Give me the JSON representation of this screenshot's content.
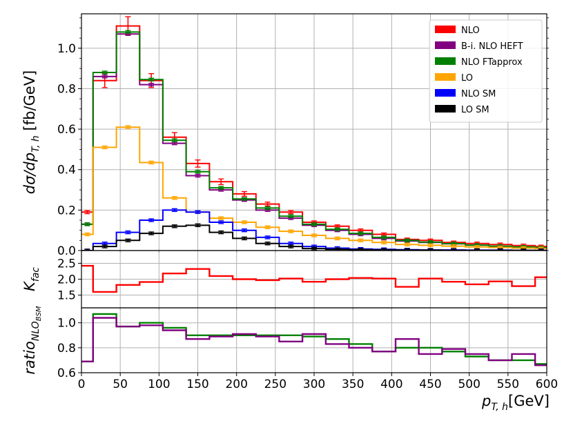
{
  "chart_data": [
    {
      "panel": "main",
      "type": "line",
      "step": true,
      "ylabel": "dσ/dp",
      "ylabel_sub": "T, h",
      "ylabel_unit": " [fb/GeV]",
      "xlim": [
        0,
        600
      ],
      "ylim": [
        0,
        1.17
      ],
      "yticks": [
        "0.0",
        "0.2",
        "0.4",
        "0.6",
        "0.8",
        "1.0"
      ],
      "yticks_values": [
        0,
        0.2,
        0.4,
        0.6,
        0.8,
        1.0
      ],
      "grid": true,
      "legend_position": "top-right",
      "x_edges": [
        0,
        15,
        45,
        75,
        105,
        135,
        165,
        195,
        225,
        255,
        285,
        315,
        345,
        375,
        405,
        435,
        465,
        495,
        525,
        555,
        585,
        600
      ],
      "series": [
        {
          "name": "NLO",
          "color": "#ff0000",
          "values": [
            0.19,
            0.84,
            1.11,
            0.84,
            0.56,
            0.43,
            0.34,
            0.28,
            0.23,
            0.19,
            0.14,
            0.12,
            0.1,
            0.08,
            0.055,
            0.05,
            0.04,
            0.035,
            0.03,
            0.025,
            0.02
          ]
        },
        {
          "name": "B-i. NLO HEFT",
          "color": "#800080",
          "values": [
            0.13,
            0.86,
            1.07,
            0.82,
            0.53,
            0.37,
            0.3,
            0.25,
            0.2,
            0.16,
            0.125,
            0.1,
            0.08,
            0.06,
            0.047,
            0.04,
            0.033,
            0.027,
            0.02,
            0.017,
            0.013
          ]
        },
        {
          "name": "NLO FTapprox",
          "color": "#008000",
          "values": [
            0.13,
            0.88,
            1.08,
            0.845,
            0.545,
            0.39,
            0.31,
            0.255,
            0.21,
            0.17,
            0.13,
            0.105,
            0.085,
            0.065,
            0.05,
            0.042,
            0.034,
            0.027,
            0.022,
            0.018,
            0.014
          ]
        },
        {
          "name": "LO",
          "color": "#ffa500",
          "values": [
            0.08,
            0.51,
            0.61,
            0.435,
            0.26,
            0.19,
            0.16,
            0.14,
            0.115,
            0.095,
            0.075,
            0.06,
            0.05,
            0.04,
            0.03,
            0.026,
            0.022,
            0.018,
            0.015,
            0.012,
            0.01
          ]
        },
        {
          "name": "NLO SM",
          "color": "#0000ff",
          "values": [
            0.0,
            0.035,
            0.09,
            0.15,
            0.2,
            0.19,
            0.14,
            0.1,
            0.065,
            0.035,
            0.02,
            0.012,
            0.008,
            0.006,
            0.004,
            0.003,
            0.003,
            0.002,
            0.002,
            0.001,
            0.001
          ]
        },
        {
          "name": "LO SM",
          "color": "#000000",
          "values": [
            0.0,
            0.02,
            0.05,
            0.085,
            0.12,
            0.125,
            0.09,
            0.06,
            0.035,
            0.02,
            0.01,
            0.006,
            0.004,
            0.003,
            0.002,
            0.002,
            0.001,
            0.001,
            0.001,
            0.001,
            0.0
          ]
        }
      ]
    },
    {
      "panel": "kfac",
      "type": "line",
      "step": true,
      "ylabel": "K",
      "ylabel_sub": "fac",
      "xlim": [
        0,
        600
      ],
      "ylim": [
        1.1,
        2.9
      ],
      "yticks": [
        "1.0",
        "1.5",
        "2.0",
        "2.5"
      ],
      "yticks_values": [
        1.0,
        1.5,
        2.0,
        2.5
      ],
      "grid": true,
      "x_edges": [
        0,
        15,
        45,
        75,
        105,
        135,
        165,
        195,
        225,
        255,
        285,
        315,
        345,
        375,
        405,
        435,
        465,
        495,
        525,
        555,
        585,
        600
      ],
      "series": [
        {
          "color": "#ff0000",
          "values": [
            2.42,
            1.6,
            1.82,
            1.91,
            2.18,
            2.32,
            2.1,
            2.0,
            1.97,
            2.02,
            1.92,
            2.0,
            2.04,
            2.02,
            1.76,
            2.02,
            1.92,
            1.84,
            1.93,
            1.78,
            2.06
          ]
        }
      ]
    },
    {
      "panel": "ratio",
      "type": "line",
      "step": true,
      "ylabel": "ratio",
      "ylabel_sub": "NLO",
      "ylabel_subsub": "BSM",
      "xlabel": "p",
      "xlabel_sub": "T, h",
      "xlabel_unit": "[GeV]",
      "xlim": [
        0,
        600
      ],
      "xticks": [
        "0",
        "50",
        "100",
        "150",
        "200",
        "250",
        "300",
        "350",
        "400",
        "450",
        "500",
        "550",
        "600"
      ],
      "xticks_values": [
        0,
        50,
        100,
        150,
        200,
        250,
        300,
        350,
        400,
        450,
        500,
        550,
        600
      ],
      "ylim": [
        0.6,
        1.12
      ],
      "yticks": [
        "0.6",
        "0.8",
        "1.0"
      ],
      "yticks_values": [
        0.6,
        0.8,
        1.0
      ],
      "grid": true,
      "x_edges": [
        0,
        15,
        45,
        75,
        105,
        135,
        165,
        195,
        225,
        255,
        285,
        315,
        345,
        375,
        405,
        435,
        465,
        495,
        525,
        555,
        585,
        600
      ],
      "series": [
        {
          "color": "#008000",
          "values": [
            0.69,
            1.07,
            0.97,
            1.0,
            0.96,
            0.9,
            0.9,
            0.9,
            0.9,
            0.9,
            0.89,
            0.87,
            0.83,
            0.77,
            0.8,
            0.8,
            0.77,
            0.73,
            0.7,
            0.7,
            0.67
          ]
        },
        {
          "color": "#800080",
          "values": [
            0.69,
            1.04,
            0.97,
            0.98,
            0.94,
            0.87,
            0.89,
            0.91,
            0.89,
            0.85,
            0.91,
            0.83,
            0.8,
            0.77,
            0.87,
            0.75,
            0.79,
            0.75,
            0.7,
            0.75,
            0.66
          ]
        }
      ]
    }
  ]
}
